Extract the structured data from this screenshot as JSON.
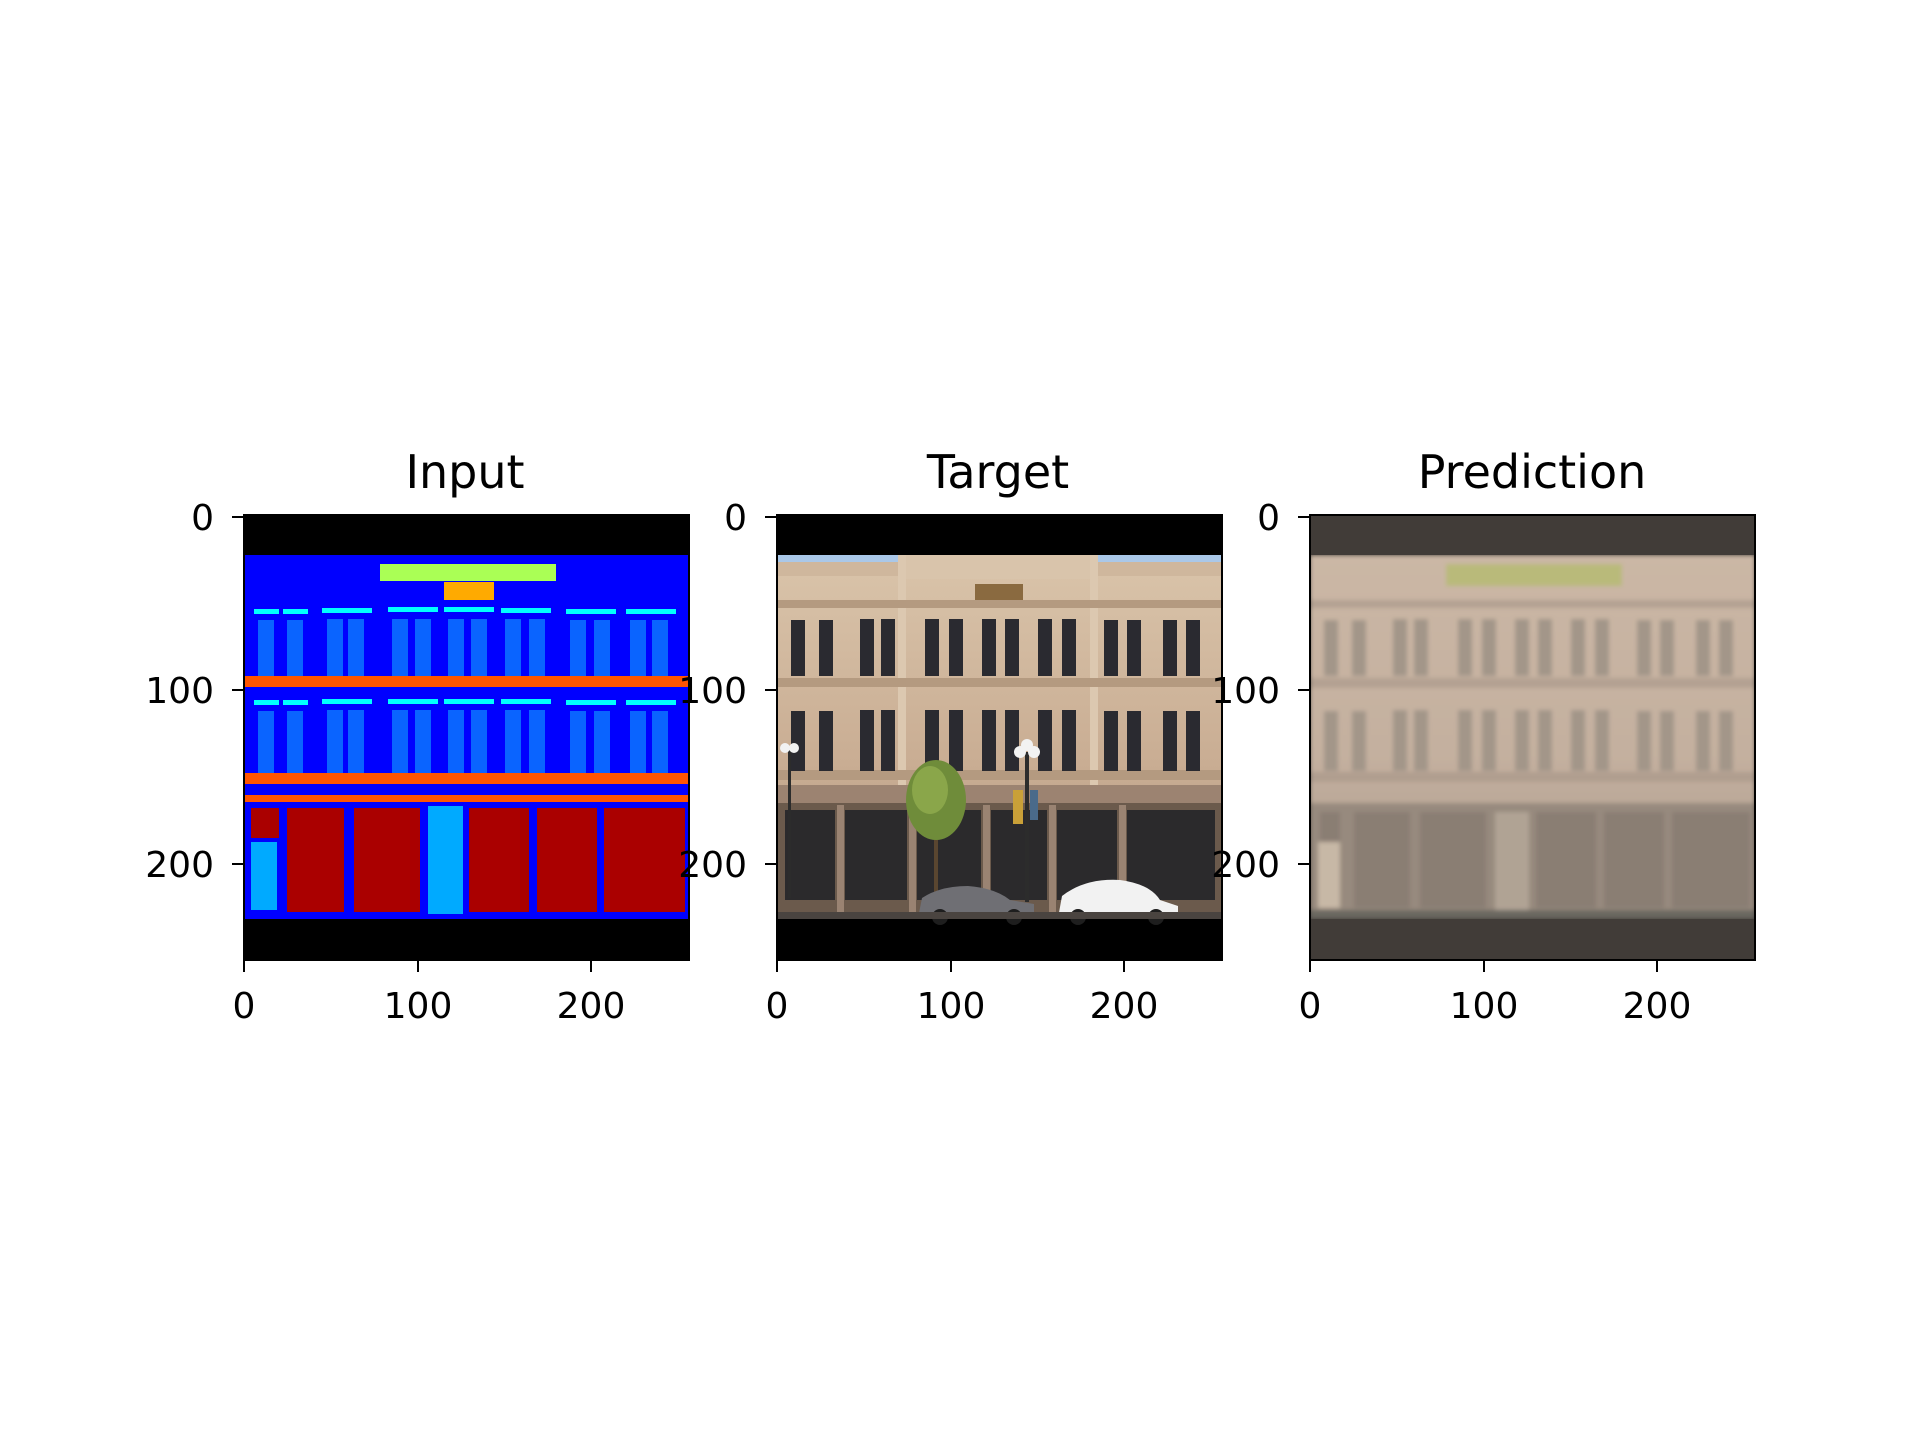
{
  "figure": {
    "panels": [
      {
        "title": "Input",
        "xticks": [
          "0",
          "100",
          "200"
        ],
        "yticks": [
          "0",
          "100",
          "200"
        ]
      },
      {
        "title": "Target",
        "xticks": [
          "0",
          "100",
          "200"
        ],
        "yticks": [
          "0",
          "100",
          "200"
        ]
      },
      {
        "title": "Prediction",
        "xticks": [
          "0",
          "100",
          "200"
        ],
        "yticks": [
          "0",
          "100",
          "200"
        ]
      }
    ]
  },
  "colors": {
    "label_background": "#0000ff",
    "label_window": "#0a64ff",
    "label_sill": "#00ffff",
    "label_cornice": "#ff5500",
    "label_shop": "#aa0000",
    "label_door": "#00aaff",
    "label_sign": "#aaff55",
    "label_deco": "#ffaa00",
    "facade_stone": "#cdb39a",
    "prediction_tone": "#c3b09f",
    "letterbox": "#000000"
  }
}
